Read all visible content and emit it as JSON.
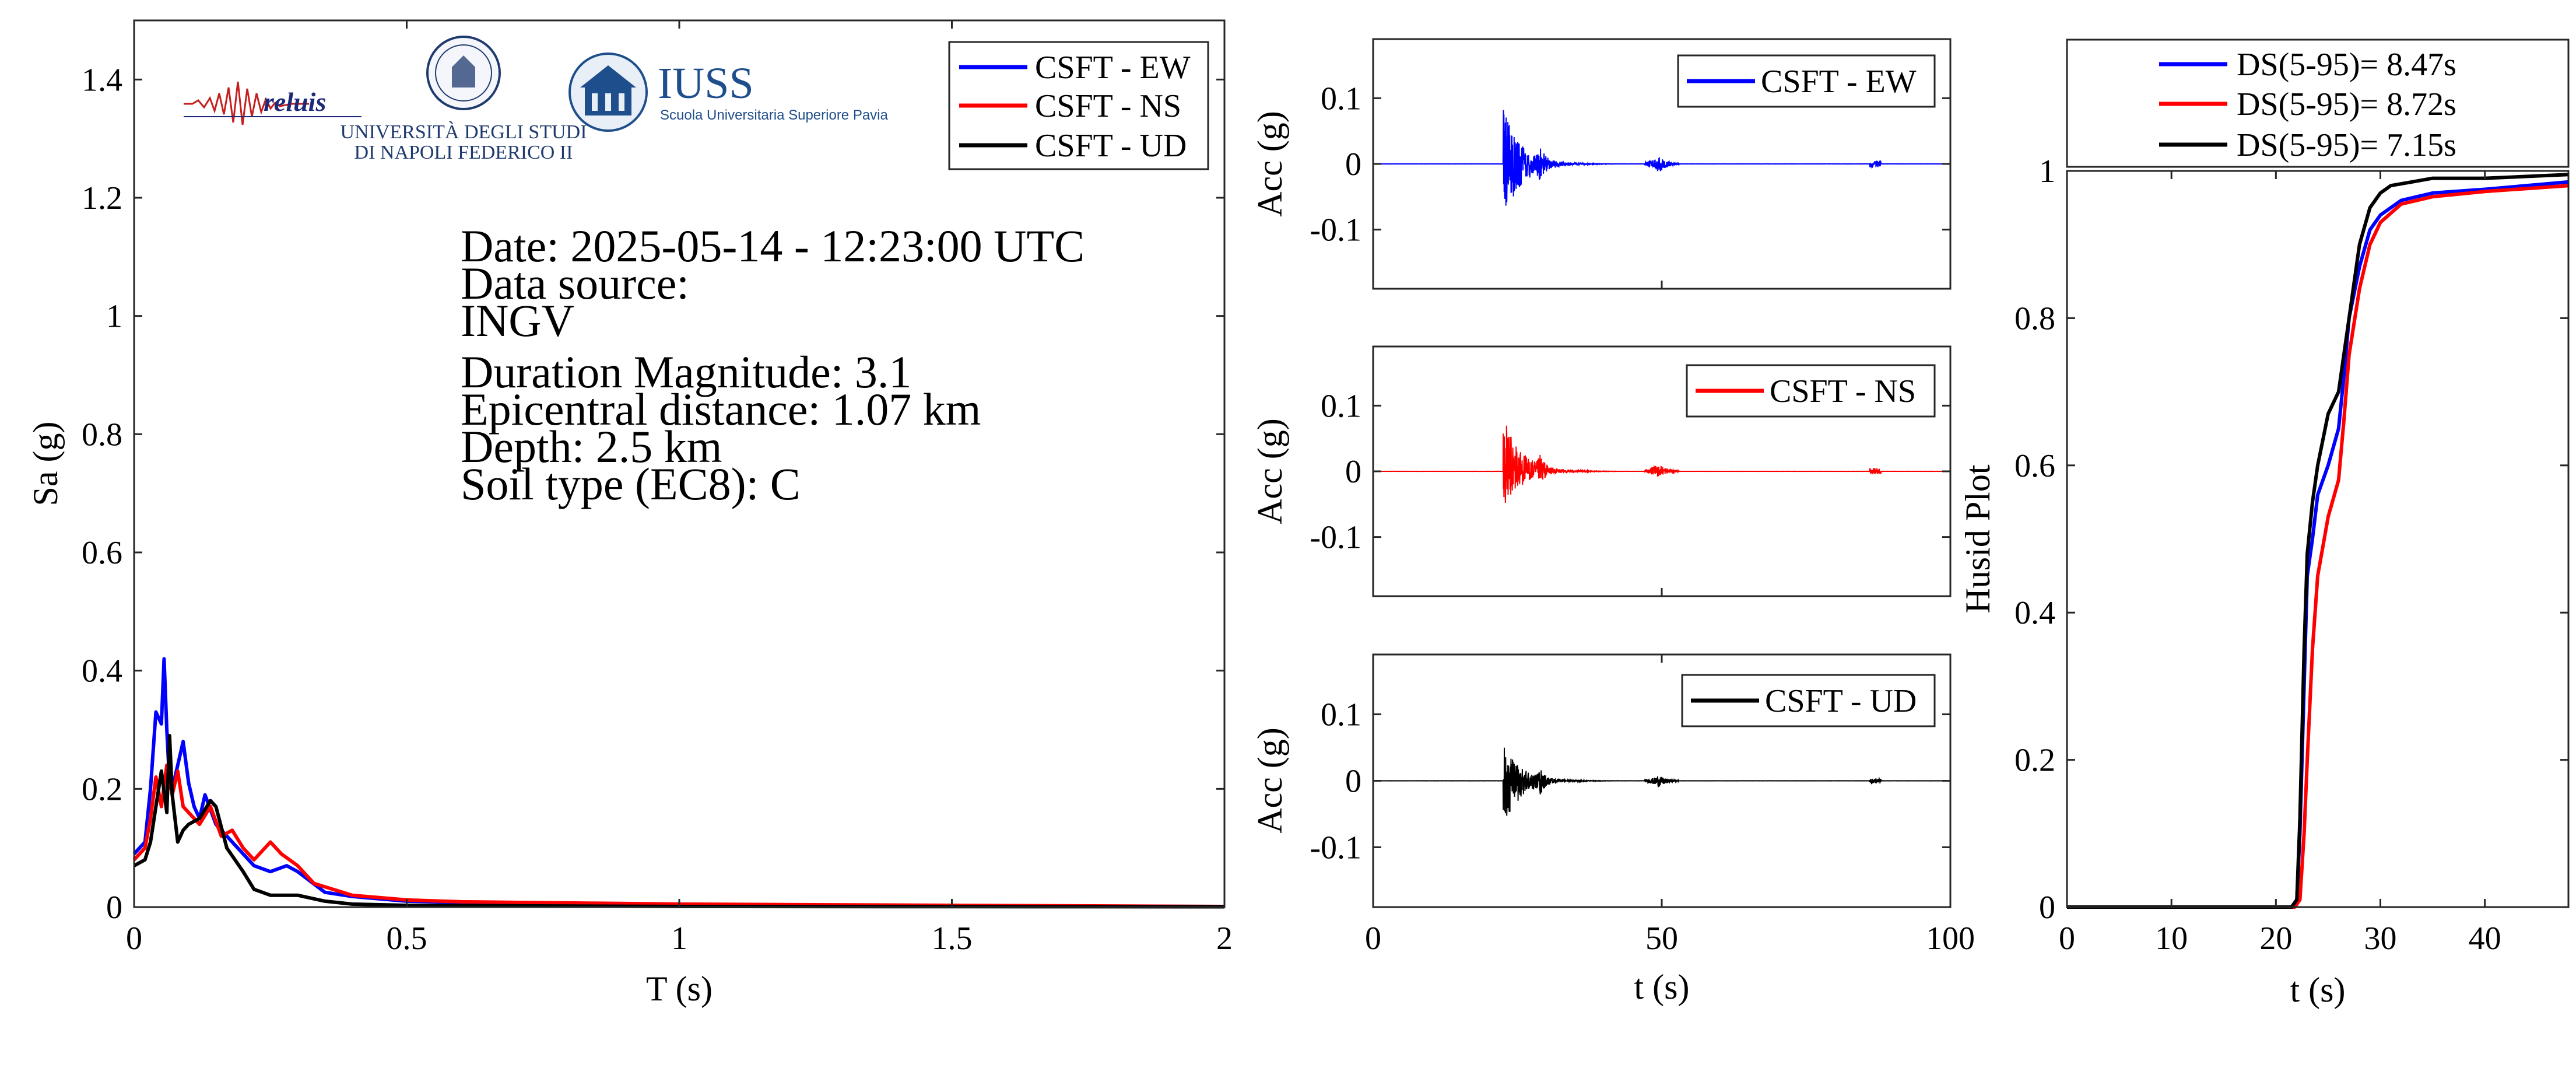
{
  "colors": {
    "EW": "#0000ff",
    "NS": "#ff0000",
    "UD": "#000000"
  },
  "logos": {
    "reluis": {
      "text": "reluis",
      "icon": "seismogram-icon"
    },
    "unina": {
      "line1": "UNIVERSITÀ DEGLI STUDI",
      "line2": "DI NAPOLI FEDERICO II",
      "icon": "university-seal-icon"
    },
    "iuss": {
      "text": "IUSS",
      "subtitle": "Scuola Universitaria Superiore Pavia",
      "icon": "iuss-building-icon"
    }
  },
  "info": {
    "date": "Date: 2025-05-14 - 12:23:00 UTC",
    "source_label": "Data source:",
    "source": "INGV",
    "magnitude": "Duration Magnitude: 3.1",
    "distance": "Epicentral distance: 1.07 km",
    "depth": "Depth: 2.5 km",
    "soil": "Soil type (EC8): C"
  },
  "chart_data": [
    {
      "type": "line",
      "title": "",
      "xlabel": "T (s)",
      "ylabel": "Sa (g)",
      "xlim": [
        0,
        2
      ],
      "ylim": [
        0,
        1.5
      ],
      "xticks": [
        0,
        0.5,
        1,
        1.5,
        2
      ],
      "xtick_labels": [
        "0",
        "0.5",
        "1",
        "1.5",
        "2"
      ],
      "yticks": [
        0,
        0.2,
        0.4,
        0.6,
        0.8,
        1,
        1.2,
        1.4
      ],
      "ytick_labels": [
        "0",
        "0.2",
        "0.4",
        "0.6",
        "0.8",
        "1",
        "1.2",
        "1.4"
      ],
      "legend": "top-right",
      "series": [
        {
          "name": "CSFT - EW",
          "color": "#0000ff",
          "x": [
            0,
            0.02,
            0.03,
            0.04,
            0.05,
            0.055,
            0.06,
            0.065,
            0.07,
            0.08,
            0.09,
            0.1,
            0.11,
            0.12,
            0.13,
            0.15,
            0.17,
            0.2,
            0.22,
            0.25,
            0.28,
            0.3,
            0.35,
            0.4,
            0.5,
            0.6,
            0.8,
            1.0,
            1.5,
            2.0
          ],
          "y": [
            0.09,
            0.11,
            0.2,
            0.33,
            0.31,
            0.42,
            0.3,
            0.21,
            0.2,
            0.24,
            0.28,
            0.21,
            0.17,
            0.15,
            0.19,
            0.14,
            0.12,
            0.09,
            0.07,
            0.06,
            0.07,
            0.06,
            0.025,
            0.018,
            0.01,
            0.008,
            0.006,
            0.004,
            0.002,
            0.001
          ]
        },
        {
          "name": "CSFT - NS",
          "color": "#ff0000",
          "x": [
            0,
            0.02,
            0.03,
            0.04,
            0.05,
            0.06,
            0.07,
            0.08,
            0.09,
            0.1,
            0.12,
            0.14,
            0.16,
            0.18,
            0.2,
            0.22,
            0.25,
            0.27,
            0.3,
            0.33,
            0.4,
            0.5,
            0.6,
            0.8,
            1.0,
            1.5,
            2.0
          ],
          "y": [
            0.08,
            0.1,
            0.15,
            0.22,
            0.17,
            0.24,
            0.19,
            0.23,
            0.17,
            0.16,
            0.14,
            0.17,
            0.12,
            0.13,
            0.1,
            0.08,
            0.11,
            0.09,
            0.07,
            0.04,
            0.02,
            0.012,
            0.009,
            0.007,
            0.005,
            0.003,
            0.001
          ]
        },
        {
          "name": "CSFT - UD",
          "color": "#000000",
          "x": [
            0,
            0.02,
            0.03,
            0.04,
            0.05,
            0.06,
            0.065,
            0.07,
            0.08,
            0.09,
            0.1,
            0.12,
            0.14,
            0.15,
            0.17,
            0.2,
            0.22,
            0.25,
            0.3,
            0.35,
            0.4,
            0.5,
            1.0,
            2.0
          ],
          "y": [
            0.07,
            0.08,
            0.11,
            0.17,
            0.23,
            0.16,
            0.29,
            0.19,
            0.11,
            0.13,
            0.14,
            0.15,
            0.18,
            0.17,
            0.1,
            0.06,
            0.03,
            0.02,
            0.02,
            0.01,
            0.005,
            0.003,
            0.001,
            0.0005
          ]
        }
      ]
    },
    {
      "type": "line",
      "title": "",
      "xlabel": "",
      "ylabel": "Acc (g)",
      "xlim": [
        0,
        100
      ],
      "ylim": [
        -0.19,
        0.19
      ],
      "yticks": [
        -0.1,
        0,
        0.1
      ],
      "ytick_labels": [
        "-0.1",
        "0",
        "0.1"
      ],
      "legend": "top-right",
      "series": [
        {
          "name": "CSFT - EW",
          "color": "#0000ff",
          "record": "EW",
          "peak": 0.085,
          "trough": -0.09
        }
      ]
    },
    {
      "type": "line",
      "title": "",
      "xlabel": "",
      "ylabel": "Acc (g)",
      "xlim": [
        0,
        100
      ],
      "ylim": [
        -0.19,
        0.19
      ],
      "yticks": [
        -0.1,
        0,
        0.1
      ],
      "ytick_labels": [
        "-0.1",
        "0",
        "0.1"
      ],
      "legend": "top-right",
      "series": [
        {
          "name": "CSFT - NS",
          "color": "#ff0000",
          "record": "NS",
          "peak": 0.085,
          "trough": -0.06
        }
      ]
    },
    {
      "type": "line",
      "title": "",
      "xlabel": "t (s)",
      "ylabel": "Acc (g)",
      "xlim": [
        0,
        100
      ],
      "ylim": [
        -0.19,
        0.19
      ],
      "xticks": [
        0,
        50,
        100
      ],
      "xtick_labels": [
        "0",
        "50",
        "100"
      ],
      "yticks": [
        -0.1,
        0,
        0.1
      ],
      "ytick_labels": [
        "-0.1",
        "0",
        "0.1"
      ],
      "legend": "top-right",
      "series": [
        {
          "name": "CSFT - UD",
          "color": "#000000",
          "record": "UD",
          "peak": 0.055,
          "trough": -0.07
        }
      ]
    },
    {
      "type": "line",
      "title": "",
      "xlabel": "t (s)",
      "ylabel": "Husid Plot",
      "xlim": [
        0,
        48
      ],
      "ylim": [
        0,
        1
      ],
      "xticks": [
        0,
        10,
        20,
        30,
        40
      ],
      "xtick_labels": [
        "0",
        "10",
        "20",
        "30",
        "40"
      ],
      "yticks": [
        0,
        0.2,
        0.4,
        0.6,
        0.8,
        1
      ],
      "ytick_labels": [
        "0",
        "0.2",
        "0.4",
        "0.6",
        "0.8",
        "1"
      ],
      "legend": "top",
      "series": [
        {
          "name": "DS(5-95)= 8.47s",
          "color": "#0000ff",
          "x": [
            0,
            21.5,
            22.0,
            22.3,
            22.7,
            23.0,
            23.5,
            24.0,
            25.0,
            26.0,
            26.5,
            27.0,
            28.0,
            29.0,
            30.0,
            32.0,
            35.0,
            40.0,
            48.0
          ],
          "y": [
            0,
            0,
            0.01,
            0.1,
            0.3,
            0.45,
            0.5,
            0.56,
            0.6,
            0.65,
            0.72,
            0.8,
            0.87,
            0.92,
            0.94,
            0.96,
            0.97,
            0.975,
            0.985
          ]
        },
        {
          "name": "DS(5-95)= 8.72s",
          "color": "#ff0000",
          "x": [
            0,
            21.8,
            22.3,
            22.7,
            23.0,
            23.5,
            24.0,
            25.0,
            26.0,
            26.5,
            27.0,
            28.0,
            29.0,
            30.0,
            32.0,
            35.0,
            40.0,
            48.0
          ],
          "y": [
            0,
            0,
            0.01,
            0.1,
            0.2,
            0.35,
            0.45,
            0.53,
            0.58,
            0.66,
            0.75,
            0.84,
            0.9,
            0.93,
            0.955,
            0.965,
            0.972,
            0.98
          ]
        },
        {
          "name": "DS(5-95)= 7.15s",
          "color": "#000000",
          "x": [
            0,
            21.5,
            22.0,
            22.3,
            22.7,
            23.0,
            23.5,
            24.0,
            25.0,
            26.0,
            27.0,
            28.0,
            29.0,
            30.0,
            31.0,
            33.0,
            35.0,
            40.0,
            48.0
          ],
          "y": [
            0,
            0,
            0.01,
            0.12,
            0.35,
            0.48,
            0.55,
            0.6,
            0.67,
            0.7,
            0.8,
            0.9,
            0.95,
            0.97,
            0.98,
            0.985,
            0.99,
            0.99,
            0.995
          ]
        }
      ]
    }
  ]
}
